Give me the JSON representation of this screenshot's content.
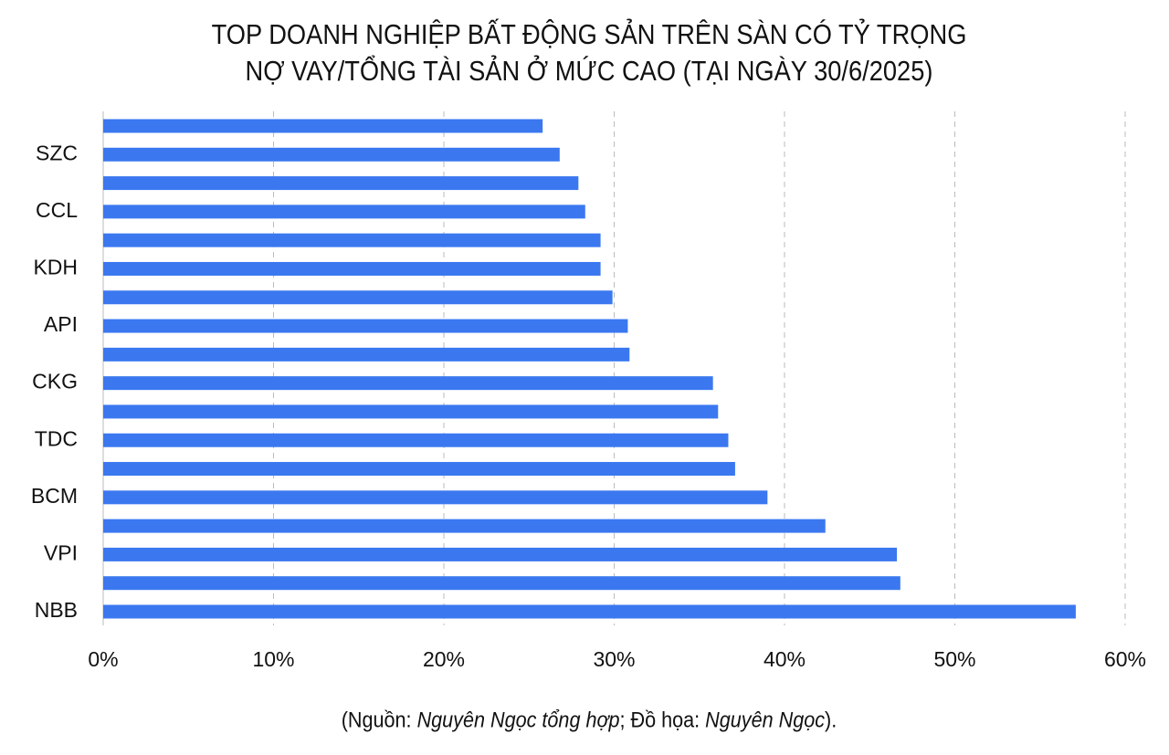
{
  "chart_data": {
    "type": "bar",
    "orientation": "horizontal",
    "title": [
      "TOP DOANH NGHIỆP BẤT ĐỘNG SẢN TRÊN SÀN CÓ TỶ TRỌNG",
      "NỢ VAY/TỔNG TÀI SẢN Ở MỨC CAO (TẠI NGÀY 30/6/2025)"
    ],
    "categories": [
      null,
      "SZC",
      null,
      "CCL",
      null,
      "KDH",
      null,
      "API",
      null,
      "CKG",
      null,
      "TDC",
      null,
      "BCM",
      null,
      "VPI",
      null,
      "NBB"
    ],
    "values": [
      25.8,
      26.8,
      27.9,
      28.3,
      29.2,
      29.2,
      29.9,
      30.8,
      30.9,
      35.8,
      36.1,
      36.7,
      37.1,
      39.0,
      42.4,
      46.6,
      46.8,
      57.1
    ],
    "color": "#3b78f0",
    "xlim": [
      0,
      60
    ],
    "xticks": [
      {
        "value": 0,
        "label": "0%"
      },
      {
        "value": 10,
        "label": "10%"
      },
      {
        "value": 20,
        "label": "20%"
      },
      {
        "value": 30,
        "label": "30%"
      },
      {
        "value": 40,
        "label": "40%"
      },
      {
        "value": 50,
        "label": "50%"
      },
      {
        "value": 60,
        "label": "60%"
      }
    ],
    "grid": true,
    "source": [
      "(Nguồn: ",
      "Nguyên Ngọc tổng hợp",
      "; Đồ họa: ",
      "Nguyên Ngọc",
      ")."
    ]
  }
}
